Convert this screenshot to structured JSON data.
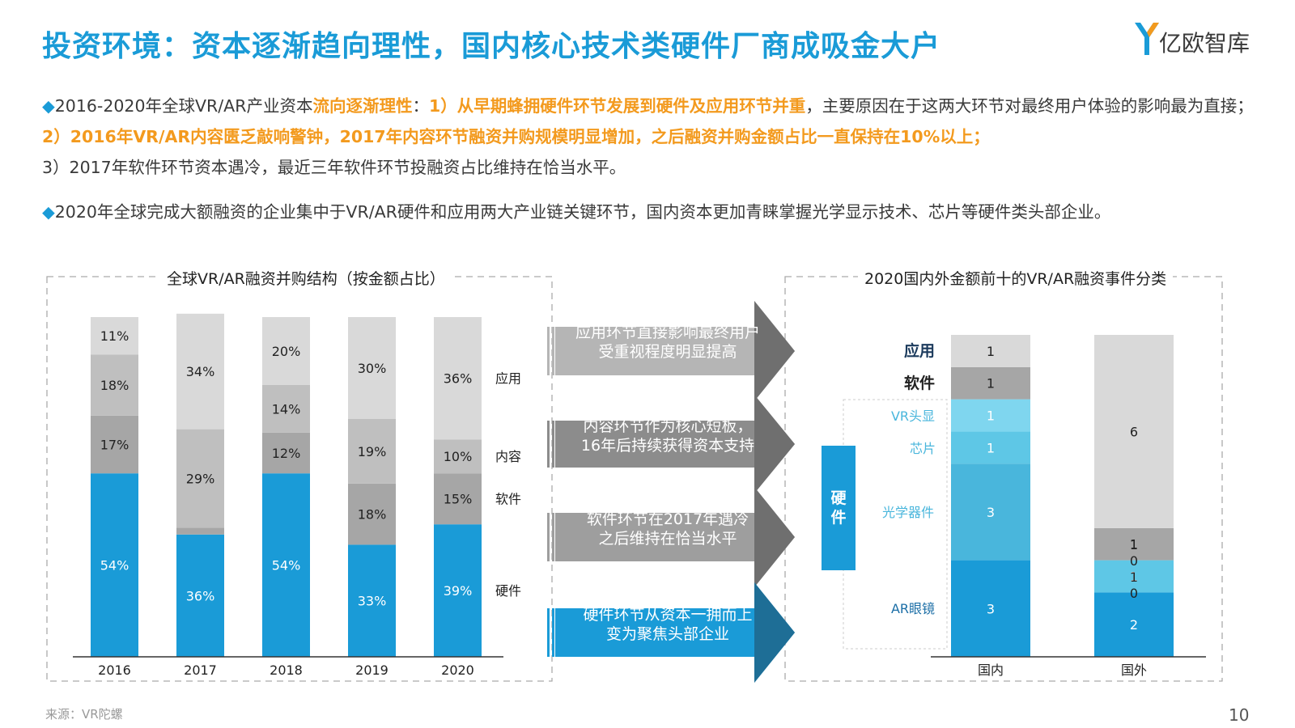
{
  "header": {
    "title": "投资环境：资本逐渐趋向理性，国内核心技术类硬件厂商成吸金大户",
    "brand": "亿欧智库"
  },
  "paragraph1": {
    "bullet": "◆",
    "p1": "2016-2020年全球VR/AR产业资本",
    "p2": "流向逐渐理性",
    "p3": "：",
    "p4": "1）从早期蜂拥硬件环节发展到硬件及应用环节并重",
    "p5": "，主要原因在于这两大环节对最终用户体验的影响最为直接；",
    "p6": "2）2016年VR/AR内容匮乏敲响警钟，2017年内容环节融资并购规模明显增加，之后融资并购金额占比一直保持在10%以上；",
    "p7": "3）2017年软件环节资本遇冷，最近三年软件环节投融资占比维持在恰当水平。"
  },
  "paragraph2": {
    "bullet": "◆",
    "text": "2020年全球完成大额融资的企业集中于VR/AR硬件和应用两大产业链关键环节，国内资本更加青睐掌握光学显示技术、芯片等硬件类头部企业。"
  },
  "arrows": [
    {
      "line1": "应用环节直接影响最终用户",
      "line2": "受重视程度明显提高"
    },
    {
      "line1": "内容环节作为核心短板，",
      "line2": "16年后持续获得资本支持"
    },
    {
      "line1": "软件环节在2017年遇冷",
      "line2": "之后维持在恰当水平"
    },
    {
      "line1": "硬件环节从资本一拥而上",
      "line2": "变为聚焦头部企业"
    }
  ],
  "footer": {
    "source": "来源：VR陀螺",
    "page": "10"
  },
  "colors": {
    "title": "#1a9bd7",
    "highlight": "#f39a1e",
    "hardware": "#1a9bd7",
    "software": "#a6a6a6",
    "content": "#bfbfbf",
    "app": "#d9d9d9"
  },
  "chart_data": [
    {
      "type": "bar",
      "stacked": true,
      "title": "全球VR/AR融资并购结构（按金额占比）",
      "categories": [
        "2016",
        "2017",
        "2018",
        "2019",
        "2020"
      ],
      "series": [
        {
          "name": "硬件",
          "values": [
            54,
            36,
            54,
            33,
            39
          ],
          "labels": [
            "54%",
            "36%",
            "54%",
            "33%",
            "39%"
          ],
          "color": "#1a9bd7"
        },
        {
          "name": "软件",
          "values": [
            17,
            2,
            12,
            18,
            15
          ],
          "labels": [
            "17%",
            "2%",
            "12%",
            "18%",
            "15%"
          ],
          "color": "#a6a6a6"
        },
        {
          "name": "内容",
          "values": [
            18,
            29,
            14,
            19,
            10
          ],
          "labels": [
            "18%",
            "29%",
            "14%",
            "19%",
            "10%"
          ],
          "color": "#bfbfbf"
        },
        {
          "name": "应用",
          "values": [
            11,
            34,
            20,
            30,
            36
          ],
          "labels": [
            "11%",
            "34%",
            "20%",
            "30%",
            "36%"
          ],
          "color": "#d9d9d9"
        }
      ],
      "ylim": [
        0,
        100
      ],
      "legend": "right"
    },
    {
      "type": "bar",
      "stacked": true,
      "title": "2020国内外金额前十的VR/AR融资事件分类",
      "categories": [
        "国内",
        "国外"
      ],
      "series": [
        {
          "name": "AR眼镜",
          "values": [
            3,
            2
          ],
          "color": "#1a9bd7"
        },
        {
          "name": "光学器件",
          "values": [
            3,
            0
          ],
          "color": "#49b6dc"
        },
        {
          "name": "芯片",
          "values": [
            1,
            1
          ],
          "color": "#5ec7e6"
        },
        {
          "name": "VR头显",
          "values": [
            1,
            0
          ],
          "color": "#7fd6ef"
        },
        {
          "name": "软件",
          "values": [
            1,
            1
          ],
          "color": "#a6a6a6"
        },
        {
          "name": "应用",
          "values": [
            1,
            6
          ],
          "color": "#d9d9d9"
        }
      ],
      "group_label": "硬件",
      "ylim": [
        0,
        10
      ],
      "legend": "left"
    }
  ]
}
